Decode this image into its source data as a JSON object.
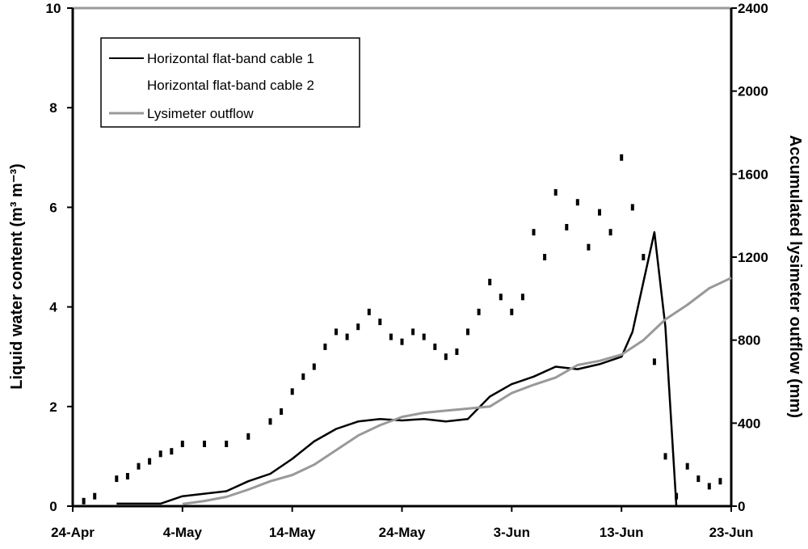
{
  "chart_data": {
    "type": "line",
    "title": "",
    "ylabel_left": "Liquid water content (m³ m⁻³)",
    "ylabel_right": "Accumulated lysimeter outflow (mm)",
    "xlabel": "",
    "x_ticks": [
      "24-Apr",
      "4-May",
      "14-May",
      "24-May",
      "3-Jun",
      "13-Jun",
      "23-Jun"
    ],
    "x_range": [
      "24-Apr",
      "23-Jun"
    ],
    "y_left_range": [
      0,
      10
    ],
    "y_left_ticks": [
      "0",
      "2",
      "4",
      "6",
      "8",
      "10"
    ],
    "y_right_range": [
      0,
      2400
    ],
    "y_right_ticks": [
      "0",
      "400",
      "800",
      "1200",
      "1600",
      "2000",
      "2400"
    ],
    "grid": false,
    "legend_position": "top-left",
    "series": [
      {
        "name": "Horizontal flat-band cable 1",
        "axis": "left",
        "color": "#000000",
        "style": "solid",
        "x": [
          "28-Apr",
          "30-Apr",
          "2-May",
          "4-May",
          "6-May",
          "8-May",
          "10-May",
          "12-May",
          "14-May",
          "16-May",
          "18-May",
          "20-May",
          "22-May",
          "24-May",
          "26-May",
          "28-May",
          "30-May",
          "1-Jun",
          "3-Jun",
          "5-Jun",
          "7-Jun",
          "9-Jun",
          "11-Jun",
          "13-Jun",
          "14-Jun",
          "15-Jun",
          "16-Jun",
          "17-Jun",
          "18-Jun"
        ],
        "values": [
          0.05,
          0.05,
          0.05,
          0.2,
          0.25,
          0.3,
          0.5,
          0.65,
          0.95,
          1.3,
          1.55,
          1.7,
          1.75,
          1.72,
          1.75,
          1.7,
          1.75,
          2.2,
          2.45,
          2.6,
          2.8,
          2.75,
          2.85,
          3.0,
          3.5,
          4.5,
          5.5,
          3.6,
          0.0
        ]
      },
      {
        "name": "Horizontal flat-band cable 2",
        "axis": "left",
        "color": "#000000",
        "style": "dotted",
        "x": [
          "25-Apr",
          "26-Apr",
          "28-Apr",
          "29-Apr",
          "30-Apr",
          "1-May",
          "2-May",
          "3-May",
          "4-May",
          "6-May",
          "8-May",
          "10-May",
          "12-May",
          "13-May",
          "14-May",
          "15-May",
          "16-May",
          "17-May",
          "18-May",
          "19-May",
          "20-May",
          "21-May",
          "22-May",
          "23-May",
          "24-May",
          "25-May",
          "26-May",
          "27-May",
          "28-May",
          "29-May",
          "30-May",
          "31-May",
          "1-Jun",
          "2-Jun",
          "3-Jun",
          "4-Jun",
          "5-Jun",
          "6-Jun",
          "7-Jun",
          "8-Jun",
          "9-Jun",
          "10-Jun",
          "11-Jun",
          "12-Jun",
          "13-Jun",
          "14-Jun",
          "15-Jun",
          "16-Jun",
          "17-Jun",
          "18-Jun",
          "19-Jun",
          "20-Jun",
          "21-Jun",
          "22-Jun"
        ],
        "values": [
          0.1,
          0.2,
          0.55,
          0.6,
          0.8,
          0.9,
          1.05,
          1.1,
          1.25,
          1.25,
          1.25,
          1.4,
          1.7,
          1.9,
          2.3,
          2.6,
          2.8,
          3.2,
          3.5,
          3.4,
          3.6,
          3.9,
          3.7,
          3.4,
          3.3,
          3.5,
          3.4,
          3.2,
          3.0,
          3.1,
          3.5,
          3.9,
          4.5,
          4.2,
          3.9,
          4.2,
          5.5,
          5.0,
          6.3,
          5.6,
          6.1,
          5.2,
          5.9,
          5.5,
          7.0,
          6.0,
          5.0,
          2.9,
          1.0,
          0.2,
          0.8,
          0.55,
          0.4,
          0.5
        ]
      },
      {
        "name": "Lysimeter outflow",
        "axis": "right",
        "color": "#999999",
        "style": "solid",
        "x": [
          "4-May",
          "6-May",
          "8-May",
          "10-May",
          "12-May",
          "14-May",
          "16-May",
          "18-May",
          "20-May",
          "22-May",
          "24-May",
          "26-May",
          "28-May",
          "30-May",
          "1-Jun",
          "3-Jun",
          "5-Jun",
          "7-Jun",
          "9-Jun",
          "11-Jun",
          "13-Jun",
          "15-Jun",
          "17-Jun",
          "19-Jun",
          "21-Jun",
          "23-Jun"
        ],
        "values": [
          10,
          25,
          45,
          80,
          120,
          150,
          200,
          270,
          340,
          390,
          430,
          450,
          460,
          470,
          480,
          545,
          585,
          620,
          680,
          700,
          730,
          800,
          900,
          970,
          1050,
          1100
        ]
      }
    ]
  }
}
